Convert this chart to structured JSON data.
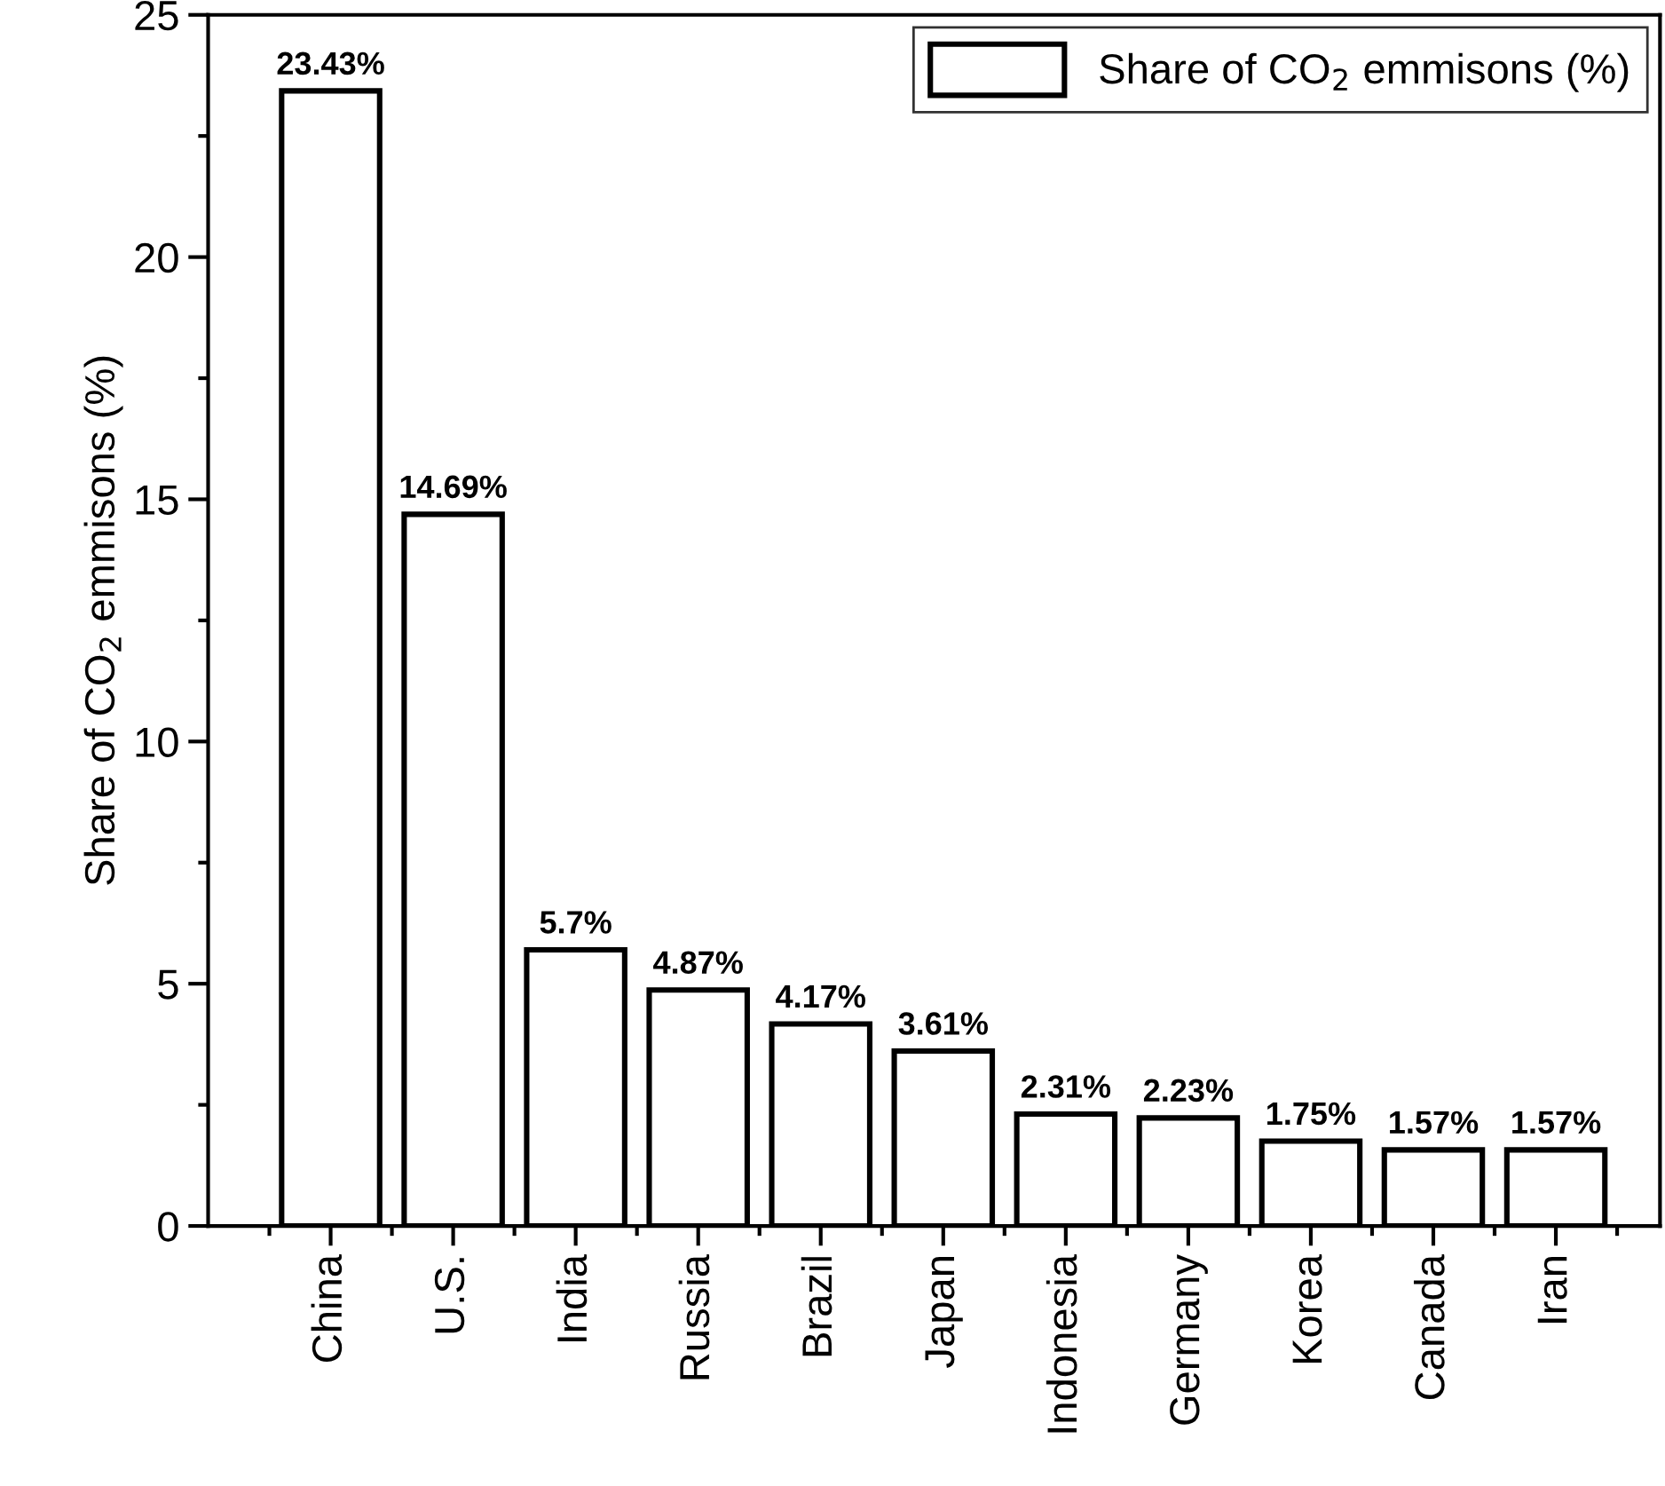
{
  "chart_data": {
    "type": "bar",
    "ylabel": "Share of CO$_{2}$ emmisons (%)",
    "categories": [
      "China",
      "U.S.",
      "India",
      "Russia",
      "Brazil",
      "Japan",
      "Indonesia",
      "Germany",
      "Korea",
      "Canada",
      "Iran"
    ],
    "series": [
      {
        "name": "Share of CO$_{2}$ emmisons (%)",
        "color": "#ffffff",
        "values": [
          23.43,
          14.69,
          5.7,
          4.87,
          4.17,
          3.61,
          2.31,
          2.23,
          1.75,
          1.57,
          1.57
        ],
        "value_labels": [
          "23.43%",
          "14.69%",
          "5.7%",
          "4.87%",
          "4.17%",
          "3.61%",
          "2.31%",
          "2.23%",
          "1.75%",
          "1.57%",
          "1.57%"
        ]
      }
    ],
    "ylim": [
      0,
      25
    ],
    "yticks": [
      0,
      5,
      10,
      15,
      20,
      25
    ],
    "legend": "top right",
    "grid": false
  }
}
